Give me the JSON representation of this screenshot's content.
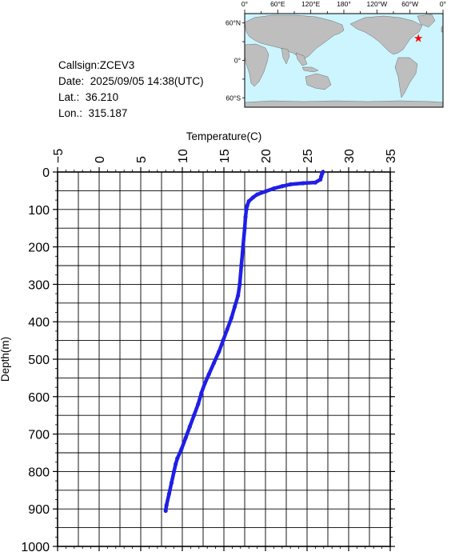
{
  "info": {
    "callsign": "Callsign:ZCEV3",
    "date_label": "Date:",
    "date_value": "2025/09/05 14:38(UTC)",
    "lat_label": "Lat.:",
    "lat_value": "36.210",
    "lon_label": "Lon.:",
    "lon_value": "315.187"
  },
  "map": {
    "top_labels": [
      "0°",
      "60°E",
      "120°E",
      "180°",
      "120°W",
      "60°W",
      "0°"
    ],
    "side_labels": [
      "60°N",
      "0°",
      "60°S"
    ],
    "ocean_color": "#ccf5ff",
    "land_color": "#bebebe",
    "marker": {
      "lon": 315.187,
      "lat": 36.21,
      "color": "#ff0000",
      "symbol": "star-icon"
    }
  },
  "chart_data": {
    "type": "line",
    "xlabel": "Temperature(C)",
    "ylabel": "Depth(m)",
    "xlim": [
      -5,
      35
    ],
    "ylim": [
      0,
      1000
    ],
    "y_inverted": true,
    "x_axis_position": "top",
    "x_ticks": [
      -5,
      0,
      5,
      10,
      15,
      20,
      25,
      30,
      35
    ],
    "y_ticks": [
      0,
      100,
      200,
      300,
      400,
      500,
      600,
      700,
      800,
      900,
      1000
    ],
    "x_tick_labels": [
      "−5",
      "0",
      "5",
      "10",
      "15",
      "20",
      "25",
      "30",
      "35"
    ],
    "y_tick_labels": [
      "0",
      "100",
      "200",
      "300",
      "400",
      "500",
      "600",
      "700",
      "800",
      "900",
      "1000"
    ],
    "grid": true,
    "line_color": "#1f1fe6",
    "series": [
      {
        "points": [
          [
            26.9,
            0
          ],
          [
            26.8,
            5
          ],
          [
            26.7,
            12
          ],
          [
            26.6,
            20
          ],
          [
            26.0,
            28
          ],
          [
            24.5,
            30
          ],
          [
            23.0,
            33
          ],
          [
            22.0,
            38
          ],
          [
            21.0,
            44
          ],
          [
            20.0,
            52
          ],
          [
            19.0,
            60
          ],
          [
            18.5,
            68
          ],
          [
            18.0,
            78
          ],
          [
            17.8,
            90
          ],
          [
            17.7,
            100
          ],
          [
            17.6,
            120
          ],
          [
            17.5,
            150
          ],
          [
            17.3,
            200
          ],
          [
            17.1,
            250
          ],
          [
            16.9,
            300
          ],
          [
            16.7,
            330
          ],
          [
            16.3,
            360
          ],
          [
            15.9,
            390
          ],
          [
            15.4,
            420
          ],
          [
            14.9,
            450
          ],
          [
            14.4,
            480
          ],
          [
            13.8,
            510
          ],
          [
            13.2,
            540
          ],
          [
            12.7,
            565
          ],
          [
            12.3,
            590
          ],
          [
            11.9,
            620
          ],
          [
            11.4,
            650
          ],
          [
            10.9,
            680
          ],
          [
            10.4,
            710
          ],
          [
            9.9,
            740
          ],
          [
            9.4,
            765
          ],
          [
            9.2,
            780
          ],
          [
            9.0,
            800
          ],
          [
            8.7,
            830
          ],
          [
            8.4,
            860
          ],
          [
            8.1,
            890
          ],
          [
            8.0,
            905
          ]
        ]
      }
    ]
  }
}
